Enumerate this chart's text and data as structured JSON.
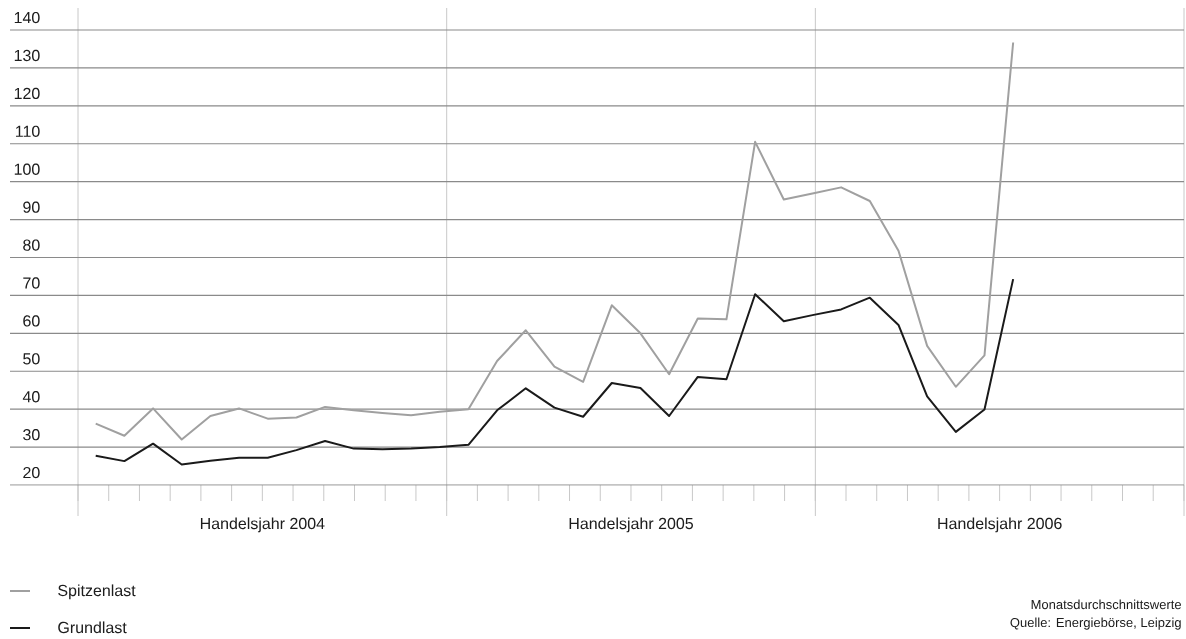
{
  "chart_data": {
    "type": "line",
    "categories": [
      null,
      null,
      null,
      null,
      null,
      null,
      null,
      null,
      null,
      null,
      null,
      null,
      null,
      null,
      null,
      null,
      null,
      null,
      null,
      null,
      null,
      null,
      null,
      null,
      null,
      null,
      null,
      null,
      null,
      null,
      null,
      null,
      null
    ],
    "series": [
      {
        "name": "Spitzenlast",
        "color": "#a0a0a0",
        "values": [
          36.2,
          33.0,
          40.2,
          32.0,
          38.2,
          40.2,
          37.5,
          37.8,
          40.6,
          39.7,
          39.0,
          38.4,
          39.3,
          40.0,
          52.7,
          60.8,
          51.2,
          47.2,
          67.4,
          60.0,
          49.2,
          63.9,
          63.7,
          110.5,
          95.3,
          96.9,
          98.5,
          94.9,
          81.8,
          56.7,
          45.9,
          54.2,
          136.7
        ]
      },
      {
        "name": "Grundlast",
        "color": "#1a1a1a",
        "values": [
          27.7,
          26.3,
          30.9,
          25.4,
          26.4,
          27.2,
          27.2,
          29.2,
          31.6,
          29.6,
          29.4,
          29.6,
          30.0,
          30.6,
          39.7,
          45.5,
          40.4,
          38.0,
          46.9,
          45.6,
          38.2,
          48.5,
          47.9,
          70.3,
          63.2,
          64.8,
          66.3,
          69.4,
          62.2,
          43.4,
          34.0,
          39.9,
          74.3
        ]
      }
    ],
    "ylim": [
      20,
      140
    ],
    "yticks": [
      20,
      30,
      40,
      50,
      60,
      70,
      80,
      90,
      100,
      110,
      120,
      130,
      140
    ],
    "grid": "y",
    "legend": "bottom left",
    "marker": "none",
    "line_style": "solid",
    "annotations": [
      "Handelsjahr 2004",
      "Handelsjahr 2005",
      "Handelsjahr 2006",
      "Monatsdurchschnittswerte",
      "Quelle: Energiebörse, Leipzig"
    ]
  }
}
